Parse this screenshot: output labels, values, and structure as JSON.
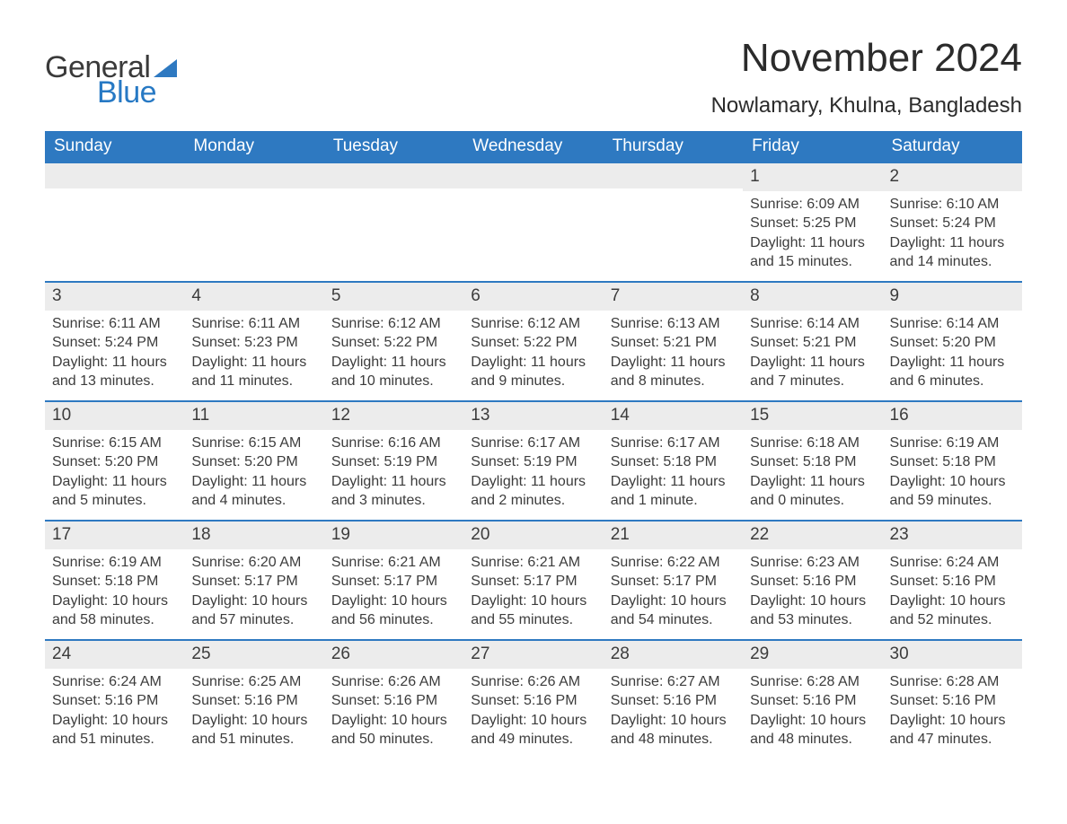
{
  "brand": {
    "word1": "General",
    "word2": "Blue",
    "triangle_color": "#2e79c1"
  },
  "title": "November 2024",
  "location": "Nowlamary, Khulna, Bangladesh",
  "colors": {
    "header_bg": "#2e79c1",
    "header_text": "#ffffff",
    "strip_bg": "#ececec",
    "week_border": "#2e79c1",
    "body_text": "#3c3c3c",
    "page_bg": "#ffffff"
  },
  "day_headers": [
    "Sunday",
    "Monday",
    "Tuesday",
    "Wednesday",
    "Thursday",
    "Friday",
    "Saturday"
  ],
  "weeks": [
    [
      null,
      null,
      null,
      null,
      null,
      {
        "n": "1",
        "sunrise": "Sunrise: 6:09 AM",
        "sunset": "Sunset: 5:25 PM",
        "daylight1": "Daylight: 11 hours",
        "daylight2": "and 15 minutes."
      },
      {
        "n": "2",
        "sunrise": "Sunrise: 6:10 AM",
        "sunset": "Sunset: 5:24 PM",
        "daylight1": "Daylight: 11 hours",
        "daylight2": "and 14 minutes."
      }
    ],
    [
      {
        "n": "3",
        "sunrise": "Sunrise: 6:11 AM",
        "sunset": "Sunset: 5:24 PM",
        "daylight1": "Daylight: 11 hours",
        "daylight2": "and 13 minutes."
      },
      {
        "n": "4",
        "sunrise": "Sunrise: 6:11 AM",
        "sunset": "Sunset: 5:23 PM",
        "daylight1": "Daylight: 11 hours",
        "daylight2": "and 11 minutes."
      },
      {
        "n": "5",
        "sunrise": "Sunrise: 6:12 AM",
        "sunset": "Sunset: 5:22 PM",
        "daylight1": "Daylight: 11 hours",
        "daylight2": "and 10 minutes."
      },
      {
        "n": "6",
        "sunrise": "Sunrise: 6:12 AM",
        "sunset": "Sunset: 5:22 PM",
        "daylight1": "Daylight: 11 hours",
        "daylight2": "and 9 minutes."
      },
      {
        "n": "7",
        "sunrise": "Sunrise: 6:13 AM",
        "sunset": "Sunset: 5:21 PM",
        "daylight1": "Daylight: 11 hours",
        "daylight2": "and 8 minutes."
      },
      {
        "n": "8",
        "sunrise": "Sunrise: 6:14 AM",
        "sunset": "Sunset: 5:21 PM",
        "daylight1": "Daylight: 11 hours",
        "daylight2": "and 7 minutes."
      },
      {
        "n": "9",
        "sunrise": "Sunrise: 6:14 AM",
        "sunset": "Sunset: 5:20 PM",
        "daylight1": "Daylight: 11 hours",
        "daylight2": "and 6 minutes."
      }
    ],
    [
      {
        "n": "10",
        "sunrise": "Sunrise: 6:15 AM",
        "sunset": "Sunset: 5:20 PM",
        "daylight1": "Daylight: 11 hours",
        "daylight2": "and 5 minutes."
      },
      {
        "n": "11",
        "sunrise": "Sunrise: 6:15 AM",
        "sunset": "Sunset: 5:20 PM",
        "daylight1": "Daylight: 11 hours",
        "daylight2": "and 4 minutes."
      },
      {
        "n": "12",
        "sunrise": "Sunrise: 6:16 AM",
        "sunset": "Sunset: 5:19 PM",
        "daylight1": "Daylight: 11 hours",
        "daylight2": "and 3 minutes."
      },
      {
        "n": "13",
        "sunrise": "Sunrise: 6:17 AM",
        "sunset": "Sunset: 5:19 PM",
        "daylight1": "Daylight: 11 hours",
        "daylight2": "and 2 minutes."
      },
      {
        "n": "14",
        "sunrise": "Sunrise: 6:17 AM",
        "sunset": "Sunset: 5:18 PM",
        "daylight1": "Daylight: 11 hours",
        "daylight2": "and 1 minute."
      },
      {
        "n": "15",
        "sunrise": "Sunrise: 6:18 AM",
        "sunset": "Sunset: 5:18 PM",
        "daylight1": "Daylight: 11 hours",
        "daylight2": "and 0 minutes."
      },
      {
        "n": "16",
        "sunrise": "Sunrise: 6:19 AM",
        "sunset": "Sunset: 5:18 PM",
        "daylight1": "Daylight: 10 hours",
        "daylight2": "and 59 minutes."
      }
    ],
    [
      {
        "n": "17",
        "sunrise": "Sunrise: 6:19 AM",
        "sunset": "Sunset: 5:18 PM",
        "daylight1": "Daylight: 10 hours",
        "daylight2": "and 58 minutes."
      },
      {
        "n": "18",
        "sunrise": "Sunrise: 6:20 AM",
        "sunset": "Sunset: 5:17 PM",
        "daylight1": "Daylight: 10 hours",
        "daylight2": "and 57 minutes."
      },
      {
        "n": "19",
        "sunrise": "Sunrise: 6:21 AM",
        "sunset": "Sunset: 5:17 PM",
        "daylight1": "Daylight: 10 hours",
        "daylight2": "and 56 minutes."
      },
      {
        "n": "20",
        "sunrise": "Sunrise: 6:21 AM",
        "sunset": "Sunset: 5:17 PM",
        "daylight1": "Daylight: 10 hours",
        "daylight2": "and 55 minutes."
      },
      {
        "n": "21",
        "sunrise": "Sunrise: 6:22 AM",
        "sunset": "Sunset: 5:17 PM",
        "daylight1": "Daylight: 10 hours",
        "daylight2": "and 54 minutes."
      },
      {
        "n": "22",
        "sunrise": "Sunrise: 6:23 AM",
        "sunset": "Sunset: 5:16 PM",
        "daylight1": "Daylight: 10 hours",
        "daylight2": "and 53 minutes."
      },
      {
        "n": "23",
        "sunrise": "Sunrise: 6:24 AM",
        "sunset": "Sunset: 5:16 PM",
        "daylight1": "Daylight: 10 hours",
        "daylight2": "and 52 minutes."
      }
    ],
    [
      {
        "n": "24",
        "sunrise": "Sunrise: 6:24 AM",
        "sunset": "Sunset: 5:16 PM",
        "daylight1": "Daylight: 10 hours",
        "daylight2": "and 51 minutes."
      },
      {
        "n": "25",
        "sunrise": "Sunrise: 6:25 AM",
        "sunset": "Sunset: 5:16 PM",
        "daylight1": "Daylight: 10 hours",
        "daylight2": "and 51 minutes."
      },
      {
        "n": "26",
        "sunrise": "Sunrise: 6:26 AM",
        "sunset": "Sunset: 5:16 PM",
        "daylight1": "Daylight: 10 hours",
        "daylight2": "and 50 minutes."
      },
      {
        "n": "27",
        "sunrise": "Sunrise: 6:26 AM",
        "sunset": "Sunset: 5:16 PM",
        "daylight1": "Daylight: 10 hours",
        "daylight2": "and 49 minutes."
      },
      {
        "n": "28",
        "sunrise": "Sunrise: 6:27 AM",
        "sunset": "Sunset: 5:16 PM",
        "daylight1": "Daylight: 10 hours",
        "daylight2": "and 48 minutes."
      },
      {
        "n": "29",
        "sunrise": "Sunrise: 6:28 AM",
        "sunset": "Sunset: 5:16 PM",
        "daylight1": "Daylight: 10 hours",
        "daylight2": "and 48 minutes."
      },
      {
        "n": "30",
        "sunrise": "Sunrise: 6:28 AM",
        "sunset": "Sunset: 5:16 PM",
        "daylight1": "Daylight: 10 hours",
        "daylight2": "and 47 minutes."
      }
    ]
  ]
}
